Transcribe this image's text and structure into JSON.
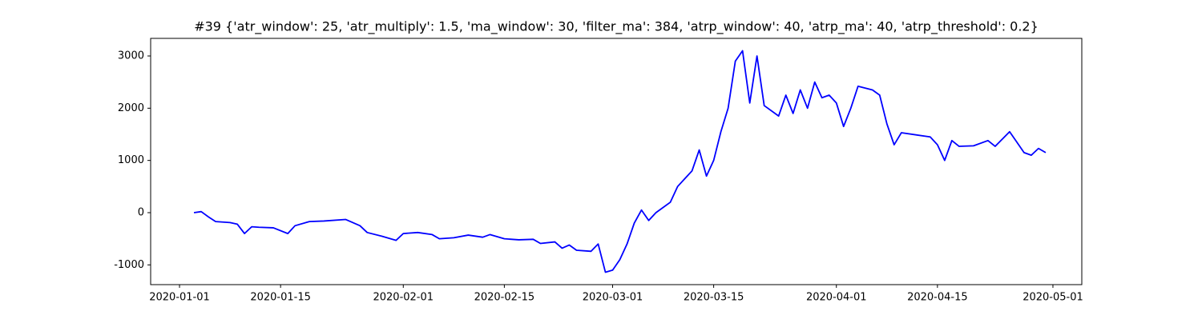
{
  "chart_data": {
    "type": "line",
    "title": "#39 {'atr_window': 25, 'atr_multiply': 1.5, 'ma_window': 30, 'filter_ma': 384, 'atrp_window': 40, 'atrp_ma': 40, 'atrp_threshold': 0.2}",
    "x": [
      "2020-01-03",
      "2020-01-04",
      "2020-01-05",
      "2020-01-06",
      "2020-01-08",
      "2020-01-09",
      "2020-01-10",
      "2020-01-11",
      "2020-01-12",
      "2020-01-14",
      "2020-01-16",
      "2020-01-17",
      "2020-01-19",
      "2020-01-21",
      "2020-01-24",
      "2020-01-26",
      "2020-01-27",
      "2020-01-29",
      "2020-01-31",
      "2020-02-01",
      "2020-02-03",
      "2020-02-05",
      "2020-02-06",
      "2020-02-08",
      "2020-02-10",
      "2020-02-12",
      "2020-02-13",
      "2020-02-15",
      "2020-02-17",
      "2020-02-19",
      "2020-02-20",
      "2020-02-22",
      "2020-02-23",
      "2020-02-24",
      "2020-02-25",
      "2020-02-27",
      "2020-02-28",
      "2020-02-29",
      "2020-03-01",
      "2020-03-02",
      "2020-03-03",
      "2020-03-04",
      "2020-03-05",
      "2020-03-06",
      "2020-03-07",
      "2020-03-09",
      "2020-03-10",
      "2020-03-11",
      "2020-03-12",
      "2020-03-13",
      "2020-03-14",
      "2020-03-15",
      "2020-03-16",
      "2020-03-17",
      "2020-03-18",
      "2020-03-19",
      "2020-03-20",
      "2020-03-21",
      "2020-03-22",
      "2020-03-24",
      "2020-03-25",
      "2020-03-26",
      "2020-03-27",
      "2020-03-28",
      "2020-03-29",
      "2020-03-30",
      "2020-03-31",
      "2020-04-01",
      "2020-04-02",
      "2020-04-03",
      "2020-04-04",
      "2020-04-06",
      "2020-04-07",
      "2020-04-08",
      "2020-04-09",
      "2020-04-10",
      "2020-04-14",
      "2020-04-15",
      "2020-04-16",
      "2020-04-17",
      "2020-04-18",
      "2020-04-20",
      "2020-04-22",
      "2020-04-23",
      "2020-04-25",
      "2020-04-26",
      "2020-04-27",
      "2020-04-28",
      "2020-04-29",
      "2020-04-30"
    ],
    "series": [
      {
        "color": "#0000ff",
        "values": [
          0,
          20,
          -80,
          -170,
          -190,
          -220,
          -400,
          -270,
          -280,
          -290,
          -400,
          -250,
          -170,
          -160,
          -130,
          -250,
          -380,
          -450,
          -530,
          -400,
          -380,
          -420,
          -500,
          -480,
          -430,
          -470,
          -420,
          -500,
          -520,
          -510,
          -590,
          -560,
          -680,
          -620,
          -720,
          -740,
          -600,
          -1140,
          -1100,
          -900,
          -600,
          -200,
          50,
          -150,
          0,
          200,
          500,
          650,
          800,
          1200,
          700,
          1000,
          1550,
          2000,
          2900,
          3100,
          2100,
          3000,
          2050,
          1850,
          2250,
          1900,
          2350,
          2000,
          2500,
          2200,
          2250,
          2100,
          1650,
          2000,
          2420,
          2350,
          2250,
          1700,
          1300,
          1530,
          1450,
          1300,
          1000,
          1380,
          1270,
          1280,
          1380,
          1270,
          1550,
          1350,
          1150,
          1100,
          1230,
          1150
        ]
      }
    ],
    "xlim": [
      "2019-12-28",
      "2020-05-05"
    ],
    "xticks": [
      "2020-01-01",
      "2020-01-15",
      "2020-02-01",
      "2020-02-15",
      "2020-03-01",
      "2020-03-15",
      "2020-04-01",
      "2020-04-15",
      "2020-05-01"
    ],
    "ylim": [
      -1378,
      3337
    ],
    "yticks": [
      -1000,
      0,
      1000,
      2000,
      3000
    ]
  }
}
